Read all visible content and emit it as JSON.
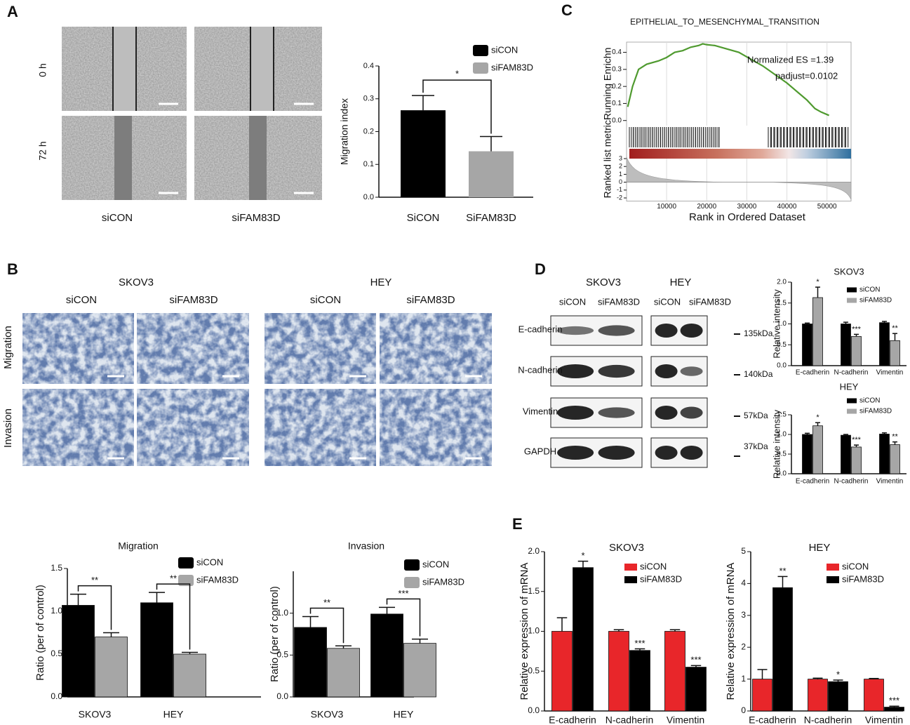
{
  "texts": [
    "A",
    "B",
    "C",
    "D",
    "E",
    "0 h",
    "72 h",
    "siCON",
    "siFAM83D",
    "SKOV3",
    "HEY",
    "siCON",
    "siFAM83D",
    "siCON",
    "siFAM83D",
    "Migration",
    "Invasion",
    "SKOV3",
    "HEY",
    "siCON",
    "siFAM83D",
    "siCON",
    "siFAM83D",
    "E-cadherin",
    "N-cadherin",
    "Vimentin",
    "GAPDH",
    "135kDa",
    "140kDa",
    "57kDa",
    "37kDa"
  ],
  "chart_data": [
    {
      "type": "bar",
      "ylabel": "Migration index",
      "categories": [
        "SiCON",
        "SiFAM83D"
      ],
      "values": [
        0.265,
        0.14
      ],
      "errors": [
        0.045,
        0.045
      ],
      "colors": [
        "#000000",
        "#a6a6a6"
      ],
      "legend_names": [
        "siCON",
        "siFAM83D"
      ],
      "legend": "upper right",
      "ylim": [
        0,
        0.4
      ],
      "yticks": [
        {
          "value": 0,
          "label": "0.0"
        },
        0.1,
        0.2,
        0.3,
        0.4
      ],
      "annotations": [
        "*"
      ],
      "bracket": true
    },
    {
      "type": "line",
      "title": "EPITHELIAL_TO_MESENCHYMAL_TRANSITION",
      "ylabel": "Ranked list metricRunning Enrichn",
      "xlabel": "Rank in Ordered Dataset",
      "color": "#4f9a2f",
      "x": [
        300,
        1500,
        3000,
        5000,
        8000,
        10000,
        12000,
        14000,
        16000,
        18000,
        19000,
        20000,
        22000,
        25000,
        28000,
        31000,
        34000,
        37000,
        40000,
        43000,
        45000,
        47000,
        48500,
        50500
      ],
      "values": [
        0.08,
        0.2,
        0.3,
        0.33,
        0.35,
        0.37,
        0.4,
        0.41,
        0.43,
        0.44,
        0.45,
        0.445,
        0.44,
        0.42,
        0.4,
        0.36,
        0.32,
        0.27,
        0.22,
        0.16,
        0.12,
        0.07,
        0.05,
        0.03
      ],
      "xlim": [
        0,
        56000
      ],
      "xticks": [
        10000,
        20000,
        30000,
        40000,
        50000
      ],
      "ylim": [
        -0.03,
        0.46
      ],
      "yticks": [
        {
          "value": 0,
          "label": "0.0"
        },
        0.1,
        0.2,
        0.3,
        0.4
      ],
      "rank_ylim": [
        -2.4,
        3.4
      ],
      "rank_yticks": [
        3,
        2,
        1,
        0,
        -1,
        -2
      ],
      "annotations": [
        "Normalized ES =1.39",
        "padjust=0.0102"
      ]
    },
    {
      "type": "bar",
      "title": "SKOV3",
      "ylabel": "Relative intensity",
      "categories": [
        "E-cadherin",
        "N-cadherin",
        "Vimentin"
      ],
      "legend": "upper right",
      "series": [
        {
          "name": "siCON",
          "color": "#000000",
          "values": [
            1.0,
            1.0,
            1.03
          ],
          "errors": [
            0.02,
            0.04,
            0.03
          ]
        },
        {
          "name": "siFAM83D",
          "color": "#a6a6a6",
          "values": [
            1.63,
            0.7,
            0.6
          ],
          "errors": [
            0.25,
            0.05,
            0.17
          ]
        }
      ],
      "ylim": [
        0,
        2
      ],
      "yticks": [
        {
          "value": 0,
          "label": "0.0"
        },
        0.5,
        {
          "value": 1,
          "label": "1.0"
        },
        1.5,
        {
          "value": 2,
          "label": "2.0"
        }
      ],
      "annotations": [
        "*",
        "***",
        "**"
      ]
    },
    {
      "type": "bar",
      "title": "HEY",
      "ylabel": "Relative intensity",
      "categories": [
        "E-cadherin",
        "N-cadherin",
        "Vimentin"
      ],
      "legend": "upper right",
      "series": [
        {
          "name": "siCON",
          "color": "#000000",
          "values": [
            1.0,
            0.98,
            1.01
          ],
          "errors": [
            0.03,
            0.02,
            0.03
          ]
        },
        {
          "name": "siFAM83D",
          "color": "#a6a6a6",
          "values": [
            1.22,
            0.68,
            0.74
          ],
          "errors": [
            0.08,
            0.05,
            0.07
          ]
        }
      ],
      "ylim": [
        0,
        1.5
      ],
      "yticks": [
        {
          "value": 0,
          "label": "0.0"
        },
        0.5,
        {
          "value": 1,
          "label": "1.0"
        },
        1.5
      ],
      "annotations": [
        "*",
        "***",
        "**"
      ]
    },
    {
      "type": "bar",
      "title": "Migration",
      "ylabel": "Ratio (per of control)",
      "categories": [
        "SKOV3",
        "HEY"
      ],
      "legend": "upper right",
      "series": [
        {
          "name": "siCON",
          "color": "#000000",
          "values": [
            1.07,
            1.1
          ],
          "errors": [
            0.13,
            0.12
          ]
        },
        {
          "name": "siFAM83D",
          "color": "#a6a6a6",
          "values": [
            0.7,
            0.5
          ],
          "errors": [
            0.05,
            0.02
          ]
        }
      ],
      "ylim": [
        0,
        1.5
      ],
      "yticks": [
        {
          "value": 0,
          "label": "0.0"
        },
        0.5,
        {
          "value": 1,
          "label": "1.0"
        },
        1.5
      ],
      "annotations": [
        "**",
        "**"
      ],
      "bracket": true
    },
    {
      "type": "bar",
      "title": "Invasion",
      "ylabel": "Ratio (per of control)",
      "categories": [
        "SKOV3",
        "HEY"
      ],
      "legend": "upper right",
      "series": [
        {
          "name": "siCON",
          "color": "#000000",
          "values": [
            0.83,
            0.99
          ],
          "errors": [
            0.13,
            0.08
          ]
        },
        {
          "name": "siFAM83D",
          "color": "#a6a6a6",
          "values": [
            0.58,
            0.64
          ],
          "errors": [
            0.03,
            0.05
          ]
        }
      ],
      "ylim": [
        0,
        1.5
      ],
      "yticks": [
        {
          "value": 0,
          "label": "0.0"
        },
        0.5,
        {
          "value": 1,
          "label": "1.0"
        }
      ],
      "annotations": [
        "**",
        "***"
      ],
      "bracket": true
    },
    {
      "type": "bar",
      "title": "SKOV3",
      "ylabel": "Relative expression of mRNA",
      "categories": [
        "E-cadherin",
        "N-cadherin",
        "Vimentin"
      ],
      "legend": "upper right",
      "series": [
        {
          "name": "siCON",
          "color": "#e8262a",
          "values": [
            1.0,
            1.0,
            1.0
          ],
          "errors": [
            0.17,
            0.02,
            0.02
          ]
        },
        {
          "name": "siFAM83D",
          "color": "#000000",
          "values": [
            1.8,
            0.76,
            0.55
          ],
          "errors": [
            0.08,
            0.02,
            0.02
          ]
        }
      ],
      "ylim": [
        0,
        2
      ],
      "yticks": [
        {
          "value": 0,
          "label": "0.0"
        },
        0.5,
        {
          "value": 1,
          "label": "1.0"
        },
        1.5,
        {
          "value": 2,
          "label": "2.0"
        }
      ],
      "annotations": [
        "*",
        "***",
        "***"
      ]
    },
    {
      "type": "bar",
      "title": "HEY",
      "ylabel": "Relative expression of mRNA",
      "categories": [
        "E-cadherin",
        "N-cadherin",
        "Vimentin"
      ],
      "legend": "upper right",
      "series": [
        {
          "name": "siCON",
          "color": "#e8262a",
          "values": [
            1,
            1,
            1
          ],
          "errors": [
            0.3,
            0.03,
            0.02
          ]
        },
        {
          "name": "siFAM83D",
          "color": "#000000",
          "values": [
            3.87,
            0.92,
            0.12
          ],
          "errors": [
            0.35,
            0.05,
            0.03
          ]
        }
      ],
      "ylim": [
        0,
        5
      ],
      "yticks": [
        0,
        1,
        2,
        3,
        4,
        5
      ],
      "annotations": [
        "**",
        "*",
        "***"
      ]
    }
  ]
}
